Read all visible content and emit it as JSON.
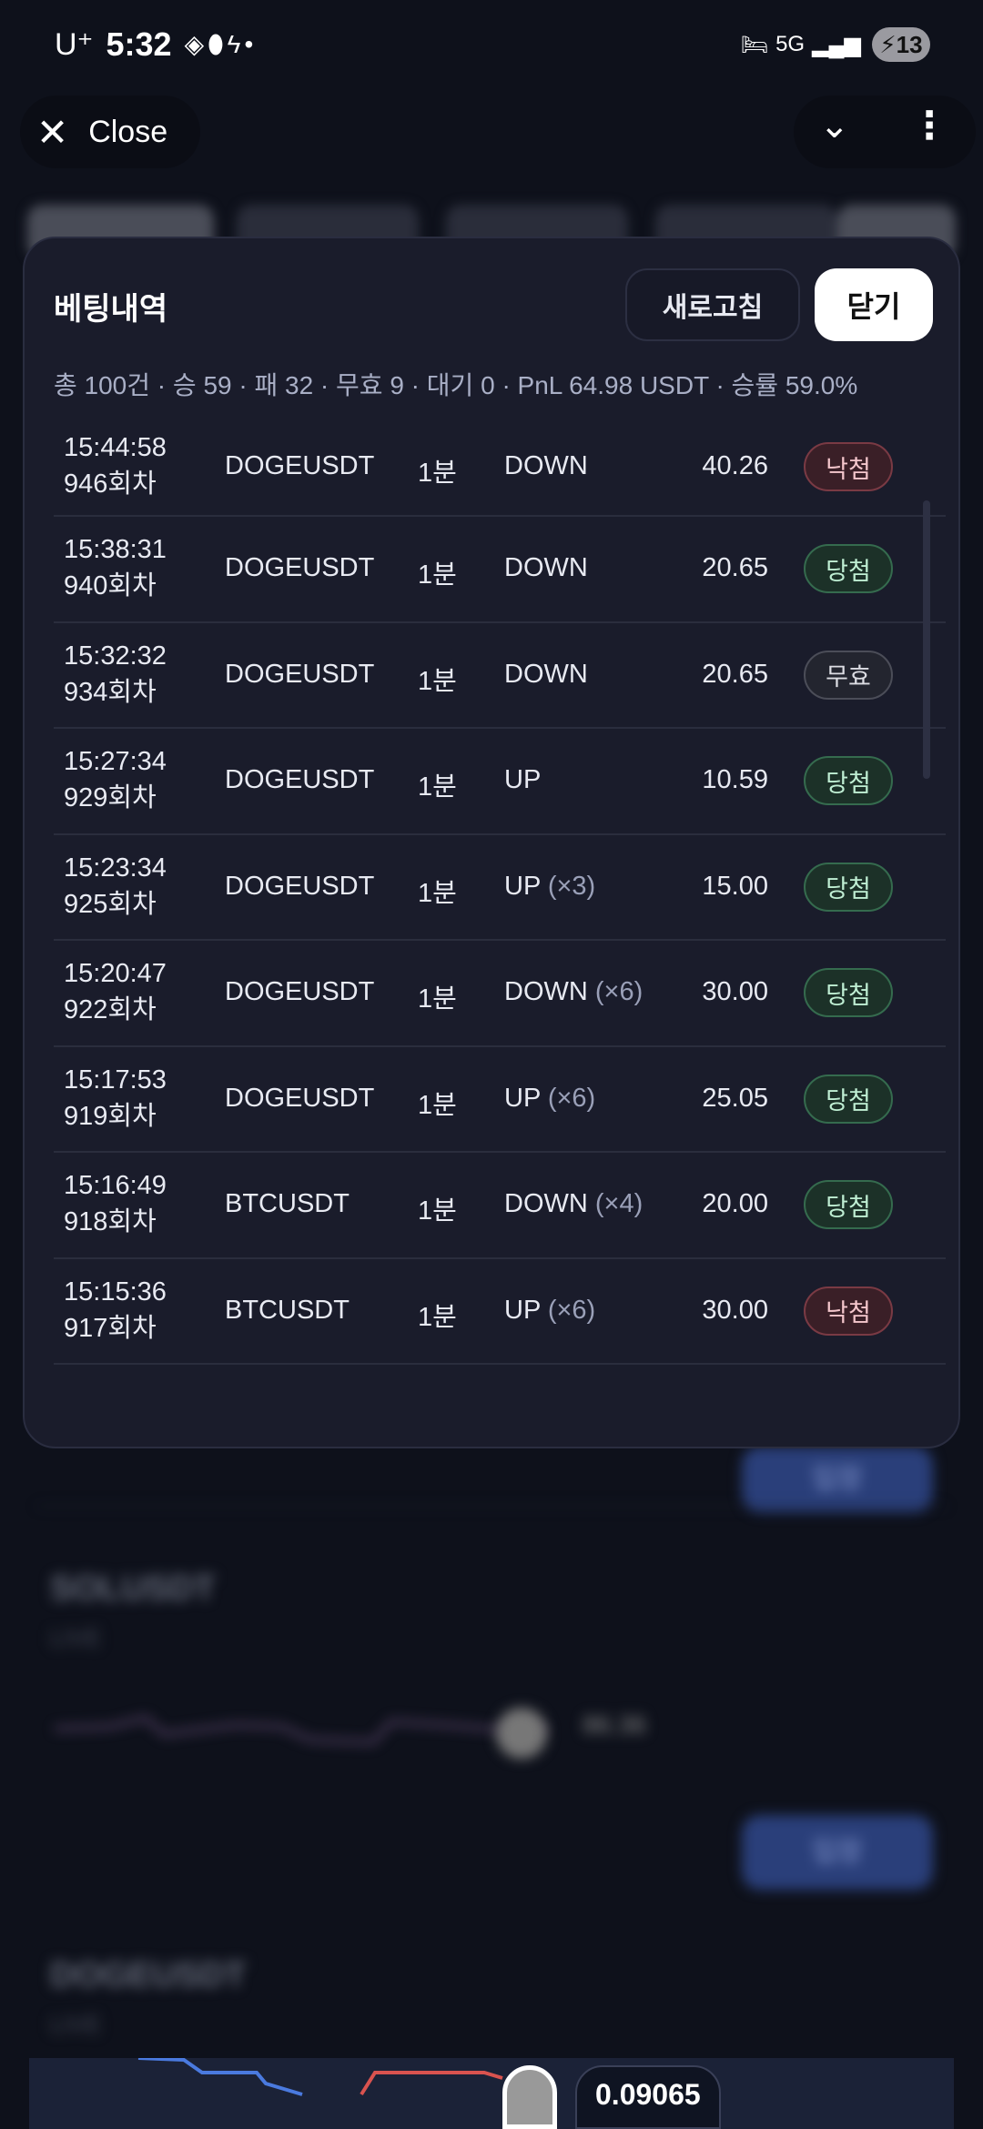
{
  "status_bar": {
    "carrier": "U⁺",
    "time": "5:32",
    "battery": "13",
    "network": "5G"
  },
  "top_bar": {
    "close_label": "Close",
    "close_icon": "x-icon",
    "chevron_icon": "chevron-down-icon",
    "more_icon": "more-vertical-icon"
  },
  "background": {
    "cards": [
      {
        "symbol": "SOLUSDT",
        "status": "LIVE",
        "price": "86.36",
        "enter": "입장"
      },
      {
        "symbol": "DOGEUSDT",
        "status": "LIVE",
        "price": "0.09065",
        "enter": "입장"
      }
    ]
  },
  "modal": {
    "title": "베팅내역",
    "refresh_label": "새로고침",
    "close_label": "닫기",
    "summary": "총 100건 · 승 59 · 패 32 · 무효 9 · 대기 0 · PnL 64.98 USDT · 승률 59.0%",
    "rows": [
      {
        "time": "15:44:58",
        "round": "946회차",
        "symbol": "DOGEUSDT",
        "period": "1분",
        "direction": "DOWN",
        "multiplier": "",
        "amount": "40.26",
        "result": "낙첨",
        "result_type": "lose"
      },
      {
        "time": "15:38:31",
        "round": "940회차",
        "symbol": "DOGEUSDT",
        "period": "1분",
        "direction": "DOWN",
        "multiplier": "",
        "amount": "20.65",
        "result": "당첨",
        "result_type": "win"
      },
      {
        "time": "15:32:32",
        "round": "934회차",
        "symbol": "DOGEUSDT",
        "period": "1분",
        "direction": "DOWN",
        "multiplier": "",
        "amount": "20.65",
        "result": "무효",
        "result_type": "void"
      },
      {
        "time": "15:27:34",
        "round": "929회차",
        "symbol": "DOGEUSDT",
        "period": "1분",
        "direction": "UP",
        "multiplier": "",
        "amount": "10.59",
        "result": "당첨",
        "result_type": "win"
      },
      {
        "time": "15:23:34",
        "round": "925회차",
        "symbol": "DOGEUSDT",
        "period": "1분",
        "direction": "UP",
        "multiplier": "(×3)",
        "amount": "15.00",
        "result": "당첨",
        "result_type": "win"
      },
      {
        "time": "15:20:47",
        "round": "922회차",
        "symbol": "DOGEUSDT",
        "period": "1분",
        "direction": "DOWN",
        "multiplier": "(×6)",
        "amount": "30.00",
        "result": "당첨",
        "result_type": "win"
      },
      {
        "time": "15:17:53",
        "round": "919회차",
        "symbol": "DOGEUSDT",
        "period": "1분",
        "direction": "UP",
        "multiplier": "(×6)",
        "amount": "25.05",
        "result": "당첨",
        "result_type": "win"
      },
      {
        "time": "15:16:49",
        "round": "918회차",
        "symbol": "BTCUSDT",
        "period": "1분",
        "direction": "DOWN",
        "multiplier": "(×4)",
        "amount": "20.00",
        "result": "당첨",
        "result_type": "win"
      },
      {
        "time": "15:15:36",
        "round": "917회차",
        "symbol": "BTCUSDT",
        "period": "1분",
        "direction": "UP",
        "multiplier": "(×6)",
        "amount": "30.00",
        "result": "낙첨",
        "result_type": "lose"
      }
    ]
  },
  "colors": {
    "win": "#356b4e",
    "lose": "#7a3a44",
    "void": "#4b4d58",
    "background": "#0e111b",
    "modal": "#1a1c2b"
  }
}
